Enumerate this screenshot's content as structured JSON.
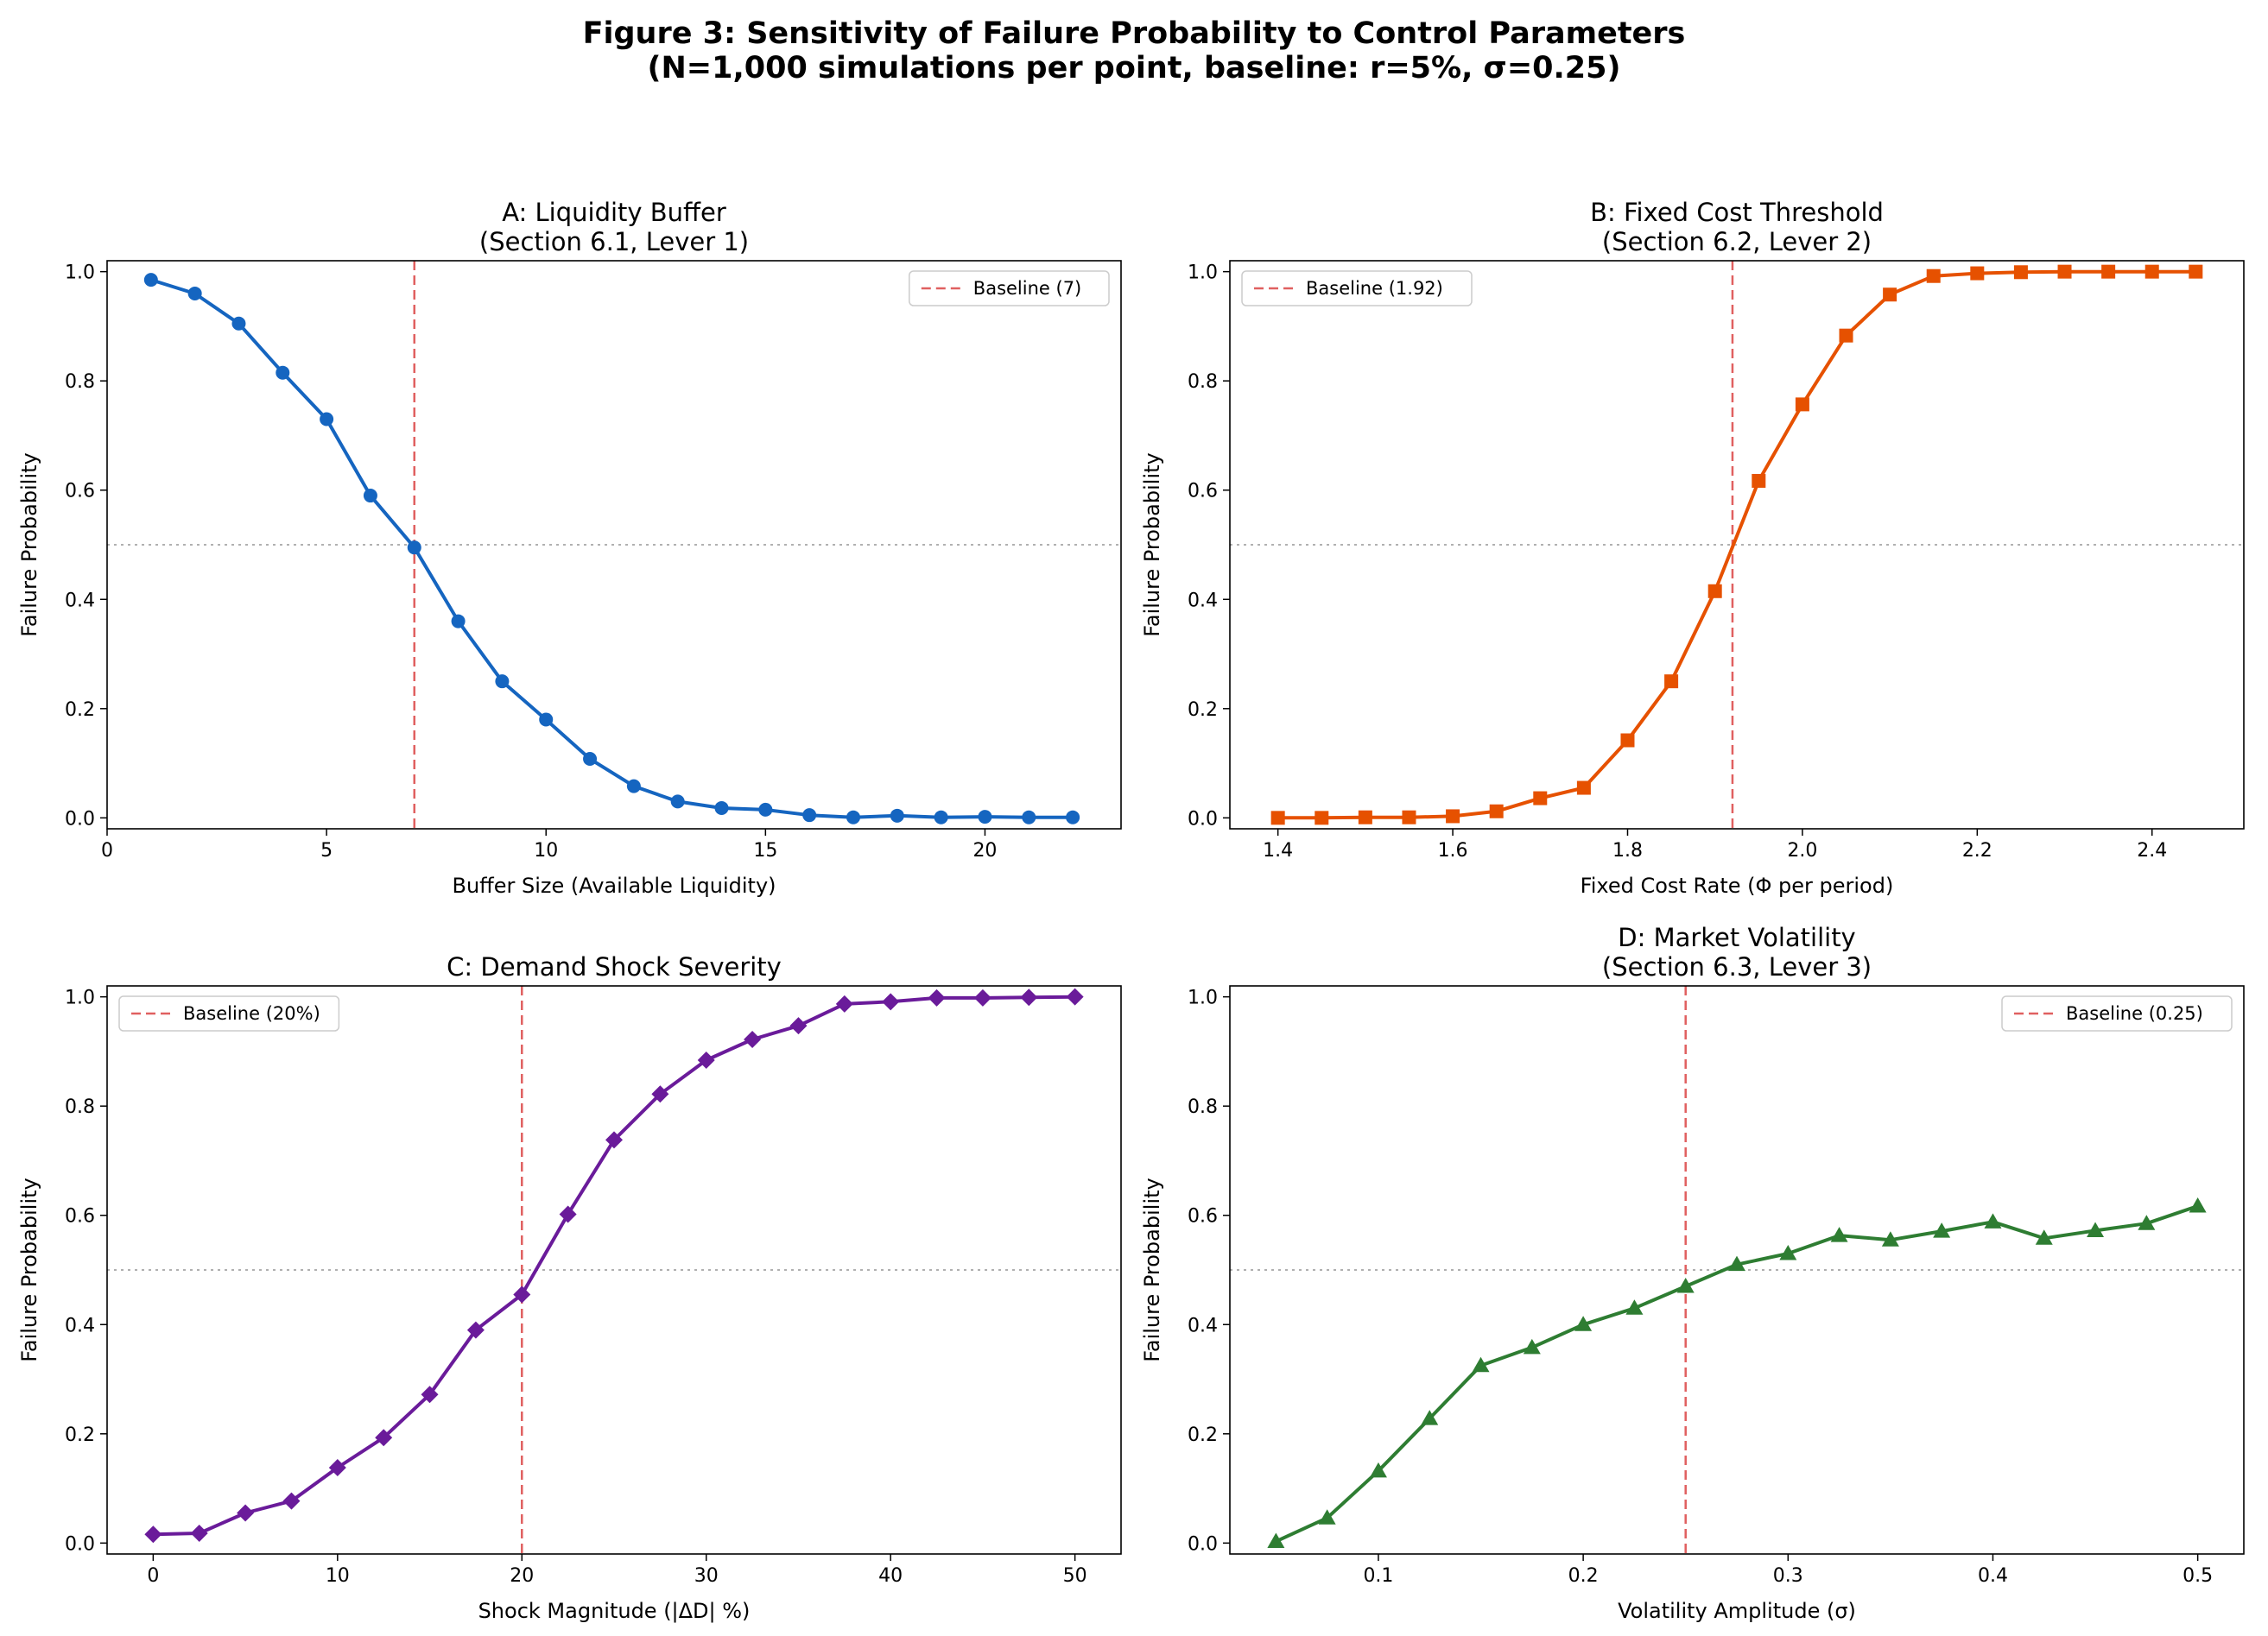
{
  "figure": {
    "title_line1": "Figure 3: Sensitivity of Failure Probability to Control Parameters",
    "title_line2": "(N=1,000 simulations per point, baseline: r=5%, σ=0.25)"
  },
  "chart_data": [
    {
      "id": "A",
      "type": "line",
      "title_lines": [
        "A: Liquidity Buffer",
        "(Section 6.1, Lever 1)"
      ],
      "xlabel": "Buffer Size (Available Liquidity)",
      "ylabel": "Failure Probability",
      "xlim": [
        0,
        23.1
      ],
      "ylim": [
        -0.02,
        1.02
      ],
      "xticks": [
        0,
        5,
        10,
        15,
        20
      ],
      "xtick_labels": [
        "0",
        "5",
        "10",
        "15",
        "20"
      ],
      "yticks": [
        0.0,
        0.2,
        0.4,
        0.6,
        0.8,
        1.0
      ],
      "ytick_labels": [
        "0.0",
        "0.2",
        "0.4",
        "0.6",
        "0.8",
        "1.0"
      ],
      "color": "#1565c0",
      "marker": "circle",
      "x": [
        1,
        2,
        3,
        4,
        5,
        6,
        7,
        8,
        9,
        10,
        11,
        12,
        13,
        14,
        15,
        16,
        17,
        18,
        19,
        20,
        21,
        22
      ],
      "y": [
        0.985,
        0.96,
        0.905,
        0.815,
        0.73,
        0.59,
        0.495,
        0.36,
        0.25,
        0.18,
        0.108,
        0.058,
        0.03,
        0.018,
        0.015,
        0.005,
        0.001,
        0.004,
        0.001,
        0.002,
        0.001,
        0.001
      ],
      "baseline": 7,
      "baseline_label": "Baseline (7)",
      "reference_y": 0.5,
      "legend_position": "upper right",
      "grid": false
    },
    {
      "id": "B",
      "type": "line",
      "title_lines": [
        "B: Fixed Cost Threshold",
        "(Section 6.2, Lever 2)"
      ],
      "xlabel": "Fixed Cost Rate (Φ per period)",
      "ylabel": "Failure Probability",
      "xlim": [
        1.345,
        2.505
      ],
      "ylim": [
        -0.02,
        1.02
      ],
      "xticks": [
        1.4,
        1.6,
        1.8,
        2.0,
        2.2,
        2.4
      ],
      "xtick_labels": [
        "1.4",
        "1.6",
        "1.8",
        "2.0",
        "2.2",
        "2.4"
      ],
      "yticks": [
        0.0,
        0.2,
        0.4,
        0.6,
        0.8,
        1.0
      ],
      "ytick_labels": [
        "0.0",
        "0.2",
        "0.4",
        "0.6",
        "0.8",
        "1.0"
      ],
      "color": "#e65100",
      "marker": "square",
      "x": [
        1.4,
        1.45,
        1.5,
        1.55,
        1.6,
        1.65,
        1.7,
        1.75,
        1.8,
        1.85,
        1.9,
        1.95,
        2.0,
        2.05,
        2.1,
        2.15,
        2.2,
        2.25,
        2.3,
        2.35,
        2.4,
        2.45
      ],
      "y": [
        0.0,
        0.0,
        0.001,
        0.001,
        0.003,
        0.012,
        0.036,
        0.055,
        0.142,
        0.25,
        0.415,
        0.617,
        0.757,
        0.883,
        0.958,
        0.992,
        0.997,
        0.999,
        1.0,
        1.0,
        1.0,
        1.0
      ],
      "baseline": 1.92,
      "baseline_label": "Baseline (1.92)",
      "reference_y": 0.5,
      "legend_position": "upper left",
      "grid": false
    },
    {
      "id": "C",
      "type": "line",
      "title_lines": [
        "C: Demand Shock Severity"
      ],
      "xlabel": "Shock Magnitude (|ΔD| %)",
      "ylabel": "Failure Probability",
      "xlim": [
        -2.5,
        52.5
      ],
      "ylim": [
        -0.02,
        1.02
      ],
      "xticks": [
        0,
        10,
        20,
        30,
        40,
        50
      ],
      "xtick_labels": [
        "0",
        "10",
        "20",
        "30",
        "40",
        "50"
      ],
      "yticks": [
        0.0,
        0.2,
        0.4,
        0.6,
        0.8,
        1.0
      ],
      "ytick_labels": [
        "0.0",
        "0.2",
        "0.4",
        "0.6",
        "0.8",
        "1.0"
      ],
      "color": "#6a1b9a",
      "marker": "diamond",
      "x": [
        0,
        2.5,
        5,
        7.5,
        10,
        12.5,
        15,
        17.5,
        20,
        22.5,
        25,
        27.5,
        30,
        32.5,
        35,
        37.5,
        40,
        42.5,
        45,
        47.5,
        50
      ],
      "y": [
        0.016,
        0.018,
        0.055,
        0.077,
        0.138,
        0.193,
        0.272,
        0.39,
        0.455,
        0.602,
        0.738,
        0.822,
        0.884,
        0.922,
        0.947,
        0.987,
        0.991,
        0.998,
        0.998,
        0.999,
        1.0
      ],
      "baseline": 20,
      "baseline_label": "Baseline (20%)",
      "reference_y": 0.5,
      "legend_position": "upper left",
      "grid": false
    },
    {
      "id": "D",
      "type": "line",
      "title_lines": [
        "D: Market Volatility",
        "(Section 6.3, Lever 3)"
      ],
      "xlabel": "Volatility Amplitude (σ)",
      "ylabel": "Failure Probability",
      "xlim": [
        0.0275,
        0.5225
      ],
      "ylim": [
        -0.02,
        1.02
      ],
      "xticks": [
        0.1,
        0.2,
        0.3,
        0.4,
        0.5
      ],
      "xtick_labels": [
        "0.1",
        "0.2",
        "0.3",
        "0.4",
        "0.5"
      ],
      "yticks": [
        0.0,
        0.2,
        0.4,
        0.6,
        0.8,
        1.0
      ],
      "ytick_labels": [
        "0.0",
        "0.2",
        "0.4",
        "0.6",
        "0.8",
        "1.0"
      ],
      "color": "#2e7d32",
      "marker": "triangle",
      "x": [
        0.05,
        0.075,
        0.1,
        0.125,
        0.15,
        0.175,
        0.2,
        0.225,
        0.25,
        0.275,
        0.3,
        0.325,
        0.35,
        0.375,
        0.4,
        0.425,
        0.45,
        0.475,
        0.5
      ],
      "y": [
        0.003,
        0.046,
        0.132,
        0.228,
        0.325,
        0.358,
        0.4,
        0.43,
        0.47,
        0.51,
        0.53,
        0.563,
        0.555,
        0.571,
        0.588,
        0.558,
        0.572,
        0.585,
        0.617
      ],
      "baseline": 0.25,
      "baseline_label": "Baseline (0.25)",
      "reference_y": 0.5,
      "legend_position": "upper right",
      "grid": false
    }
  ]
}
